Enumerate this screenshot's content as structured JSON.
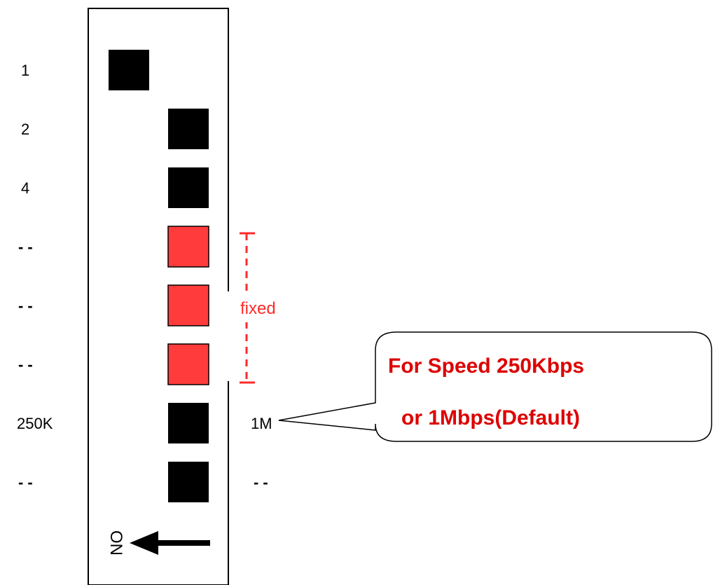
{
  "colors": {
    "switch_off": "#000000",
    "switch_fixed": "#ff3b3b",
    "fixed_marker": "#ff2a2a",
    "callout_text": "#dd0000"
  },
  "switch": {
    "on_label": "ON",
    "arrow_icon": "left-arrow-icon",
    "positions": [
      {
        "left_label": "1",
        "right_label": "",
        "side": "left",
        "state": "off"
      },
      {
        "left_label": "2",
        "right_label": "",
        "side": "right",
        "state": "off"
      },
      {
        "left_label": "4",
        "right_label": "",
        "side": "right",
        "state": "off"
      },
      {
        "left_label": "--",
        "right_label": "",
        "side": "right",
        "state": "fixed"
      },
      {
        "left_label": "--",
        "right_label": "",
        "side": "right",
        "state": "fixed"
      },
      {
        "left_label": "--",
        "right_label": "",
        "side": "right",
        "state": "fixed"
      },
      {
        "left_label": "250K",
        "right_label": "1M",
        "side": "right",
        "state": "off"
      },
      {
        "left_label": "--",
        "right_label": "--",
        "side": "right",
        "state": "off"
      }
    ]
  },
  "fixed_marker": {
    "label": "fixed"
  },
  "callout": {
    "line1": "For Speed 250Kbps",
    "line2": "or 1Mbps(Default)"
  }
}
